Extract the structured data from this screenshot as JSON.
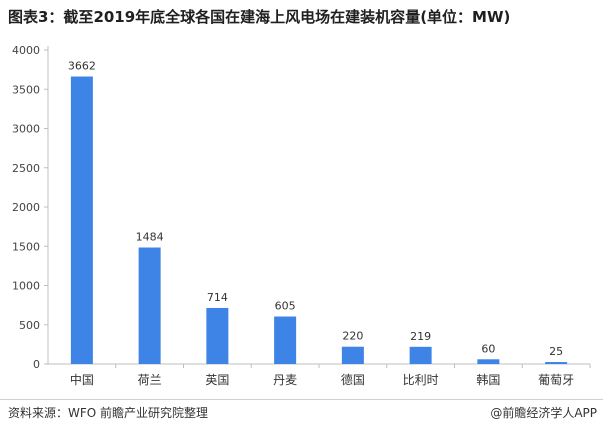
{
  "header": {
    "title": "图表3：截至2019年底全球各国在建海上风电场在建装机容量(单位：MW)"
  },
  "footer": {
    "source": "资料来源：WFO 前瞻产业研究院整理",
    "credit": "@前瞻经济学人APP"
  },
  "colors": {
    "bar": "#3d84e6",
    "axis": "#bfbfbf"
  },
  "chart_data": {
    "type": "bar",
    "categories": [
      "中国",
      "荷兰",
      "英国",
      "丹麦",
      "德国",
      "比利时",
      "韩国",
      "葡萄牙"
    ],
    "values": [
      3662,
      1484,
      714,
      605,
      220,
      219,
      60,
      25
    ],
    "ylim": [
      0,
      4000
    ],
    "yticks": [
      0,
      500,
      1000,
      1500,
      2000,
      2500,
      3000,
      3500,
      4000
    ],
    "grid": false,
    "legend": "none"
  }
}
